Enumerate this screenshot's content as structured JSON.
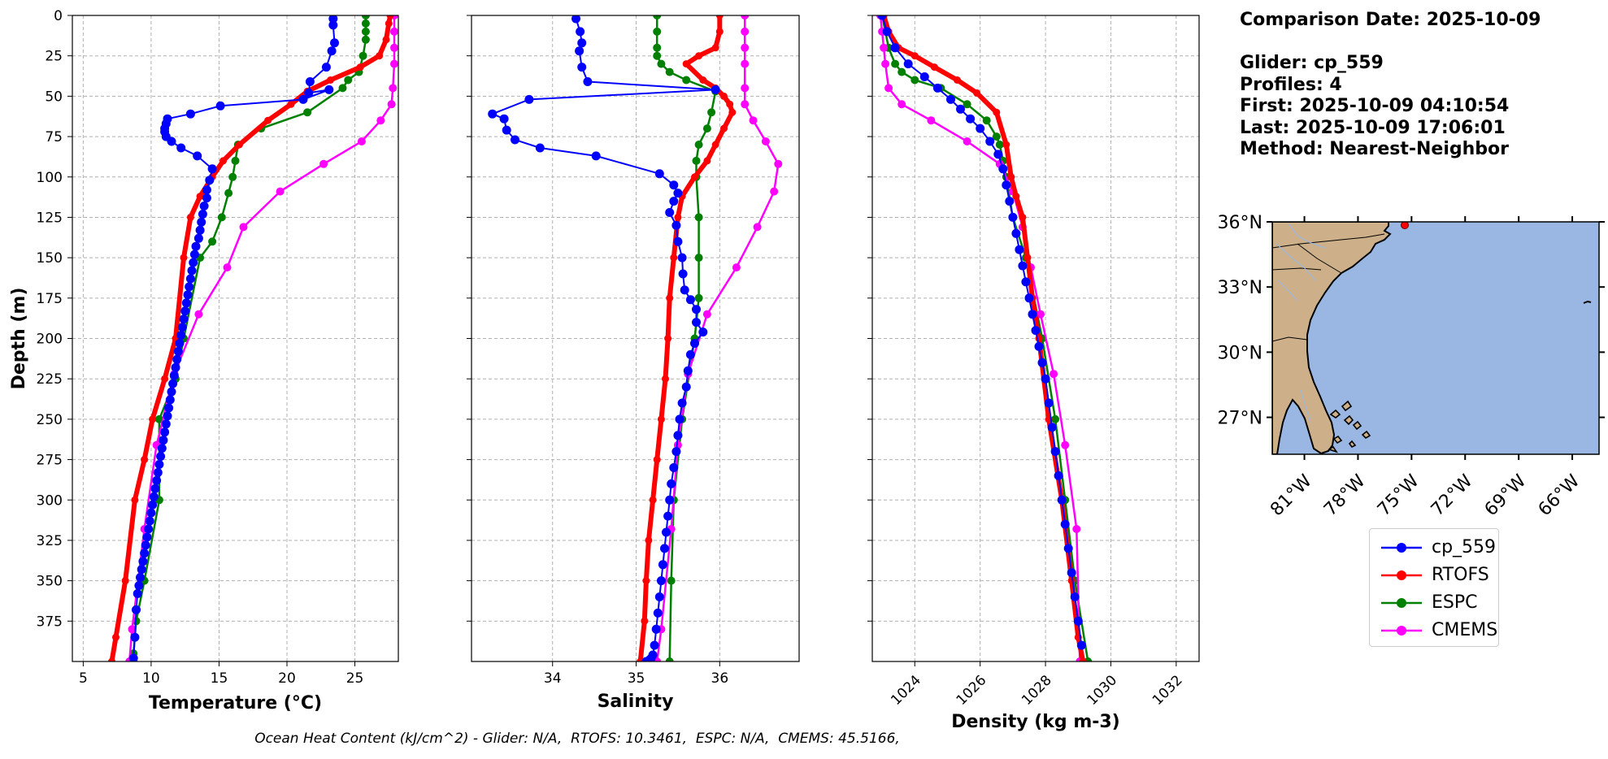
{
  "info": {
    "comparison_date": "Comparison Date: 2025-10-09",
    "glider": "Glider: cp_559",
    "profiles": "Profiles: 4",
    "first": "First: 2025-10-09 04:10:54",
    "last": "Last: 2025-10-09 17:06:01",
    "method": "Method: Nearest-Neighbor"
  },
  "footer": "Ocean Heat Content (kJ/cm^2) - Glider: N/A,  RTOFS: 10.3461,  ESPC: N/A,  CMEMS: 45.5166,",
  "colors": {
    "glider": "#0000ff",
    "glider_raw": "#00ffff",
    "rtofs": "#ff0000",
    "espc": "#008000",
    "cmems": "#ff00ff",
    "ocean": "#99b7e2",
    "land": "#cdb08a",
    "river": "#99b7e2",
    "grid": "#b0b0b0"
  },
  "legend": [
    {
      "label": "cp_559",
      "series": "glider"
    },
    {
      "label": "RTOFS",
      "series": "rtofs"
    },
    {
      "label": "ESPC",
      "series": "espc"
    },
    {
      "label": "CMEMS",
      "series": "cmems"
    }
  ],
  "chart_data": [
    {
      "type": "line",
      "id": "temperature",
      "xlabel": "Temperature (°C)",
      "ylabel": "Depth (m)",
      "xlim": [
        4.2,
        28.2
      ],
      "ylim": [
        400,
        0
      ],
      "xticks": [
        5,
        10,
        15,
        20,
        25
      ],
      "yticks": [
        0,
        25,
        50,
        75,
        100,
        125,
        150,
        175,
        200,
        225,
        250,
        275,
        300,
        325,
        350,
        375
      ],
      "grid": true,
      "series": [
        {
          "name": "RTOFS",
          "key": "rtofs",
          "x": [
            27.6,
            27.5,
            27.3,
            26.8,
            25.4,
            23.2,
            21.5,
            20.3,
            18.6,
            16.5,
            15.3,
            14.5,
            13.6,
            12.9,
            12.4,
            11.8,
            11.0,
            10.1,
            9.5,
            8.8,
            8.1,
            7.4,
            7.1
          ],
          "y": [
            0,
            5,
            15,
            25,
            32,
            40,
            47,
            55,
            65,
            80,
            90,
            100,
            112,
            125,
            150,
            200,
            225,
            250,
            275,
            300,
            350,
            385,
            400
          ]
        },
        {
          "name": "ESPC",
          "key": "espc",
          "x": [
            25.8,
            25.8,
            25.8,
            25.8,
            25.6,
            25.3,
            24.5,
            24.1,
            21.5,
            18.1,
            16.4,
            16.2,
            16.0,
            15.7,
            15.2,
            14.5,
            13.6,
            12.4,
            11.8,
            10.6,
            10.6,
            9.5,
            8.9,
            8.7,
            8.7
          ],
          "y": [
            0,
            5,
            10,
            15,
            25,
            35,
            40,
            45,
            60,
            70,
            80,
            90,
            100,
            110,
            125,
            140,
            150,
            200,
            225,
            250,
            300,
            350,
            375,
            395,
            400
          ]
        },
        {
          "name": "CMEMS",
          "key": "cmems",
          "x": [
            27.9,
            27.9,
            27.9,
            27.9,
            27.8,
            27.7,
            26.9,
            25.5,
            22.7,
            19.5,
            16.8,
            15.6,
            13.5,
            11.7,
            10.4,
            9.5,
            8.6,
            8.4
          ],
          "y": [
            0,
            10,
            20,
            30,
            45,
            55,
            65,
            78,
            92,
            109,
            131,
            156,
            185,
            222,
            266,
            318,
            380,
            400
          ]
        },
        {
          "name": "cp_559",
          "key": "glider",
          "x": [
            23.4,
            23.4,
            23.5,
            23.3,
            22.9,
            21.7,
            21.6,
            23.1,
            21.2,
            15.1,
            12.9,
            11.2,
            11.1,
            11.0,
            11.0,
            11.1,
            11.5,
            12.2,
            13.4,
            14.5,
            14.3,
            14.1,
            14.1,
            13.9,
            13.8,
            13.7,
            13.6,
            13.5,
            13.3,
            13.2,
            13.1,
            13.0,
            12.9,
            12.8,
            12.7,
            12.6,
            12.5,
            12.4,
            12.3,
            12.2,
            12.1,
            12.0,
            11.9,
            11.8,
            11.7,
            11.6,
            11.5,
            11.4,
            11.3,
            11.2,
            11.1,
            11.0,
            10.9,
            10.8,
            10.7,
            10.6,
            10.5,
            10.4,
            10.3,
            10.2,
            10.1,
            10.0,
            9.9,
            9.8,
            9.7,
            9.6,
            9.5,
            9.4,
            9.3,
            9.2,
            9.1,
            9.0,
            8.9,
            8.8,
            8.7
          ],
          "y": [
            2,
            6,
            17,
            22,
            32,
            41,
            48,
            46,
            52,
            56,
            61,
            64,
            67,
            70,
            72,
            75,
            78,
            82,
            87,
            95,
            102,
            108,
            113,
            118,
            123,
            128,
            133,
            138,
            143,
            148,
            153,
            158,
            163,
            168,
            173,
            178,
            183,
            188,
            193,
            198,
            203,
            208,
            213,
            218,
            223,
            228,
            233,
            238,
            243,
            248,
            253,
            258,
            263,
            268,
            273,
            278,
            283,
            288,
            293,
            298,
            303,
            308,
            313,
            318,
            323,
            328,
            333,
            338,
            343,
            348,
            353,
            358,
            368,
            385,
            398
          ]
        }
      ]
    },
    {
      "type": "line",
      "id": "salinity",
      "xlabel": "Salinity",
      "xlim": [
        33.03,
        36.95
      ],
      "ylim": [
        400,
        0
      ],
      "xticks": [
        34,
        35,
        36
      ],
      "grid": true,
      "series": [
        {
          "name": "RTOFS",
          "key": "rtofs",
          "x": [
            36.0,
            36.0,
            35.95,
            35.75,
            35.6,
            35.8,
            35.95,
            36.05,
            36.12,
            36.15,
            36.05,
            35.95,
            35.85,
            35.7,
            35.55,
            35.5,
            35.45,
            35.4,
            35.38,
            35.35,
            35.3,
            35.25,
            35.2,
            35.15,
            35.12,
            35.1,
            35.05
          ],
          "y": [
            0,
            10,
            20,
            25,
            30,
            40,
            45,
            50,
            55,
            60,
            70,
            80,
            90,
            100,
            112,
            125,
            150,
            175,
            200,
            225,
            250,
            275,
            300,
            325,
            350,
            375,
            400
          ]
        },
        {
          "name": "ESPC",
          "key": "espc",
          "x": [
            35.25,
            35.25,
            35.25,
            35.25,
            35.3,
            35.4,
            35.6,
            35.95,
            35.9,
            35.85,
            35.75,
            35.72,
            35.72,
            35.75,
            35.75,
            35.75,
            35.7,
            35.55,
            35.45,
            35.42,
            35.4
          ],
          "y": [
            0,
            10,
            20,
            25,
            30,
            35,
            40,
            47,
            60,
            70,
            80,
            90,
            100,
            125,
            150,
            175,
            200,
            250,
            300,
            350,
            400
          ]
        },
        {
          "name": "CMEMS",
          "key": "cmems",
          "x": [
            36.3,
            36.3,
            36.3,
            36.3,
            36.3,
            36.3,
            36.4,
            36.55,
            36.7,
            36.65,
            36.45,
            36.2,
            35.85,
            35.62,
            35.5,
            35.42,
            35.3,
            35.25
          ],
          "y": [
            0,
            10,
            20,
            30,
            45,
            55,
            65,
            78,
            92,
            109,
            131,
            156,
            185,
            222,
            266,
            318,
            380,
            400
          ]
        },
        {
          "name": "cp_559",
          "key": "glider",
          "x": [
            34.28,
            34.33,
            34.35,
            34.32,
            34.35,
            34.42,
            35.95,
            33.72,
            33.28,
            33.42,
            33.45,
            33.55,
            33.85,
            34.52,
            35.28,
            35.45,
            35.5,
            35.45,
            35.4,
            35.48,
            35.5,
            35.55,
            35.56,
            35.58,
            35.65,
            35.72,
            35.72,
            35.8,
            35.7,
            35.65,
            35.62,
            35.6,
            35.55,
            35.52,
            35.5,
            35.48,
            35.45,
            35.42,
            35.4,
            35.38,
            35.36,
            35.34,
            35.32,
            35.3,
            35.28,
            35.26,
            35.24,
            35.22,
            35.2,
            35.18,
            35.16,
            35.15,
            35.14,
            35.13,
            35.12
          ],
          "y": [
            2,
            10,
            17,
            22,
            32,
            41,
            46,
            52,
            61,
            64,
            71,
            77,
            82,
            87,
            98,
            105,
            110,
            115,
            122,
            130,
            140,
            150,
            160,
            170,
            176,
            182,
            190,
            196,
            203,
            210,
            220,
            230,
            240,
            250,
            260,
            270,
            280,
            290,
            300,
            310,
            320,
            330,
            340,
            350,
            360,
            370,
            380,
            390,
            396,
            398,
            399,
            400,
            400,
            400,
            400
          ]
        }
      ]
    },
    {
      "type": "line",
      "id": "density",
      "xlabel": "Density (kg m-3)",
      "xlim": [
        1022.7,
        1032.7
      ],
      "ylim": [
        400,
        0
      ],
      "xticks": [
        1024,
        1026,
        1028,
        1030,
        1032
      ],
      "grid": true,
      "series": [
        {
          "name": "RTOFS",
          "key": "rtofs",
          "x": [
            1023.05,
            1023.2,
            1023.5,
            1024.0,
            1024.6,
            1025.3,
            1025.9,
            1026.5,
            1026.8,
            1026.95,
            1027.1,
            1027.3,
            1027.45,
            1027.6,
            1027.8,
            1028.1,
            1028.5,
            1028.8,
            1029.0,
            1029.15
          ],
          "y": [
            0,
            10,
            20,
            25,
            32,
            40,
            48,
            60,
            80,
            100,
            112,
            125,
            150,
            175,
            200,
            250,
            300,
            350,
            385,
            400
          ]
        },
        {
          "name": "ESPC",
          "key": "espc",
          "x": [
            1023.0,
            1023.1,
            1023.2,
            1023.4,
            1023.6,
            1024.0,
            1024.8,
            1025.6,
            1026.2,
            1026.5,
            1026.6,
            1026.7,
            1026.8,
            1027.0,
            1027.4,
            1027.9,
            1028.3,
            1028.6,
            1028.9,
            1029.3
          ],
          "y": [
            0,
            10,
            20,
            30,
            35,
            40,
            45,
            55,
            65,
            75,
            80,
            90,
            100,
            125,
            150,
            200,
            250,
            300,
            350,
            400
          ]
        },
        {
          "name": "CMEMS",
          "key": "cmems",
          "x": [
            1022.95,
            1023.0,
            1023.05,
            1023.1,
            1023.2,
            1023.6,
            1024.5,
            1025.6,
            1026.6,
            1027.0,
            1027.3,
            1027.55,
            1027.85,
            1028.25,
            1028.6,
            1028.95,
            1029.05
          ],
          "y": [
            0,
            10,
            20,
            30,
            45,
            55,
            65,
            78,
            92,
            109,
            131,
            156,
            185,
            222,
            266,
            318,
            400
          ]
        },
        {
          "name": "cp_559",
          "key": "glider",
          "x": [
            1023.0,
            1023.15,
            1023.4,
            1023.8,
            1024.3,
            1024.7,
            1025.1,
            1025.4,
            1025.7,
            1026.0,
            1026.3,
            1026.55,
            1026.7,
            1026.8,
            1026.9,
            1027.0,
            1027.1,
            1027.2,
            1027.3,
            1027.4,
            1027.5,
            1027.6,
            1027.7,
            1027.8,
            1027.9,
            1028.0,
            1028.1,
            1028.2,
            1028.3,
            1028.4,
            1028.5,
            1028.6,
            1028.7,
            1028.8,
            1028.9,
            1029.0,
            1029.1
          ],
          "y": [
            0,
            10,
            20,
            30,
            38,
            45,
            52,
            58,
            64,
            70,
            78,
            86,
            95,
            105,
            115,
            125,
            135,
            145,
            155,
            165,
            175,
            185,
            195,
            205,
            215,
            225,
            240,
            255,
            270,
            285,
            300,
            315,
            330,
            345,
            360,
            375,
            390
          ]
        }
      ]
    },
    {
      "type": "map",
      "id": "map",
      "lat_range": [
        25.3,
        36.0
      ],
      "lon_range": [
        -82.8,
        -64.5
      ],
      "lat_ticks": [
        36,
        33,
        30,
        27
      ],
      "lon_ticks": [
        -81,
        -78,
        -75,
        -72,
        -69,
        -66
      ],
      "lat_labels": [
        "36°N",
        "33°N",
        "30°N",
        "27°N"
      ],
      "lon_labels": [
        "81°W",
        "78°W",
        "75°W",
        "72°W",
        "69°W",
        "66°W"
      ],
      "glider_position": {
        "lon": -74.7,
        "lat": 36.0
      }
    }
  ]
}
